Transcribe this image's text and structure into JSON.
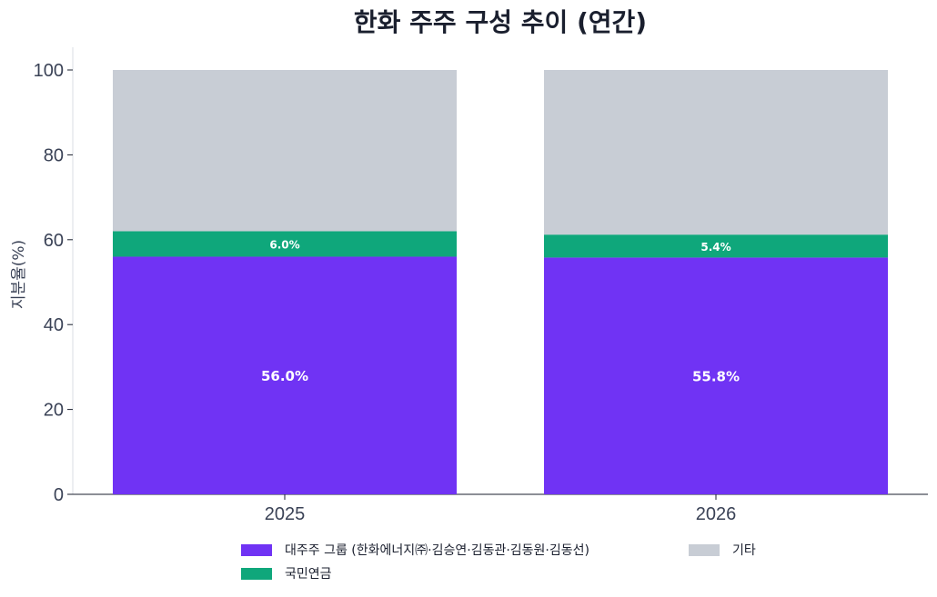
{
  "chart_data": {
    "type": "bar",
    "stacked": true,
    "title": "한화 주주 구성 추이 (연간)",
    "xlabel": "",
    "ylabel": "지분율(%)",
    "ylim": [
      0,
      100
    ],
    "yticks": [
      "0",
      "20",
      "40",
      "60",
      "80",
      "100"
    ],
    "categories": [
      "2025",
      "2026"
    ],
    "series": [
      {
        "name": "대주주 그룹 (한화에너지㈜·김승연·김동관·김동원·김동선)",
        "values": [
          56.0,
          55.8
        ],
        "color": "#7033f4",
        "labels": [
          "56.0%",
          "55.8%"
        ]
      },
      {
        "name": "국민연금",
        "values": [
          6.0,
          5.4
        ],
        "color": "#0fa77b",
        "labels": [
          "6.0%",
          "5.4%"
        ]
      },
      {
        "name": "기타",
        "values": [
          38.0,
          38.8
        ],
        "color": "#c8cdd5",
        "labels": [
          "",
          ""
        ]
      }
    ],
    "grid": false,
    "legend_position": "bottom"
  }
}
